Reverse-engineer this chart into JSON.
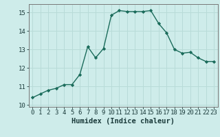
{
  "x": [
    0,
    1,
    2,
    3,
    4,
    5,
    6,
    7,
    8,
    9,
    10,
    11,
    12,
    13,
    14,
    15,
    16,
    17,
    18,
    19,
    20,
    21,
    22,
    23
  ],
  "y": [
    10.4,
    10.6,
    10.8,
    10.9,
    11.1,
    11.1,
    11.65,
    13.15,
    12.55,
    13.05,
    14.85,
    15.1,
    15.05,
    15.05,
    15.05,
    15.1,
    14.4,
    13.9,
    13.0,
    12.8,
    12.85,
    12.55,
    12.35,
    12.35
  ],
  "ylim": [
    9.9,
    15.45
  ],
  "yticks": [
    10,
    11,
    12,
    13,
    14,
    15
  ],
  "xticks": [
    0,
    1,
    2,
    3,
    4,
    5,
    6,
    7,
    8,
    9,
    10,
    11,
    12,
    13,
    14,
    15,
    16,
    17,
    18,
    19,
    20,
    21,
    22,
    23
  ],
  "xlabel": "Humidex (Indice chaleur)",
  "line_color": "#1a6b5a",
  "marker": "D",
  "marker_size": 2.2,
  "bg_color": "#ceecea",
  "grid_color": "#b8dbd8",
  "xlabel_fontsize": 7.5,
  "tick_fontsize": 6.5
}
